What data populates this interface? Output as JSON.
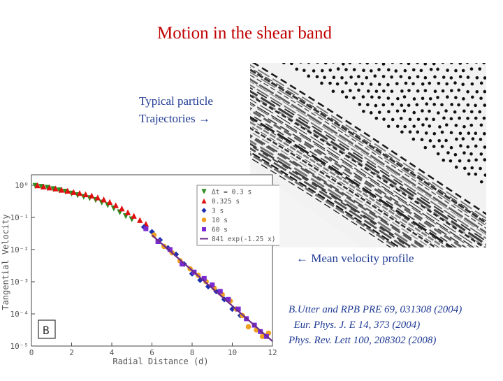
{
  "title": "Motion in the shear band",
  "trajectory_label": [
    "Typical particle",
    "Trajectories →"
  ],
  "mean_label": "← Mean velocity profile",
  "references": [
    "B.Utter and RPB PRE 69, 031308 (2004)",
    "  Eur. Phys. J. E 14, 373 (2004)",
    "Phys. Rev. Lett 100, 208302 (2008)"
  ],
  "chart_data": {
    "type": "scatter",
    "xlabel": "Radial Distance (d)",
    "ylabel": "Tangential Velocity",
    "xlim": [
      0,
      12
    ],
    "ylim_log10": [
      -5,
      0
    ],
    "x_ticks": [
      "0",
      "2",
      "4",
      "6",
      "8",
      "10",
      "12"
    ],
    "y_ticks": [
      "10⁰",
      "10⁻¹",
      "10⁻²",
      "10⁻³",
      "10⁻⁴",
      "10⁻⁵"
    ],
    "panel_label": "B",
    "legend": [
      "Δt = 0.3 s",
      "0.325 s",
      "3 s",
      "10 s",
      "60 s",
      "841 exp(-1.25 x)"
    ],
    "series": [
      {
        "name": "Δt = 0.3 s",
        "color": "#2e8b1f",
        "marker": "triangle-down",
        "x": [
          0.2,
          0.5,
          0.8,
          1.1,
          1.4,
          1.7,
          2.0,
          2.3,
          2.6,
          2.9,
          3.2,
          3.5,
          3.8,
          4.1,
          4.4,
          4.7,
          5.0
        ],
        "logy": [
          -0.02,
          -0.05,
          -0.08,
          -0.12,
          -0.16,
          -0.2,
          -0.26,
          -0.31,
          -0.36,
          -0.4,
          -0.46,
          -0.54,
          -0.62,
          -0.72,
          -0.84,
          -0.96,
          -1.06
        ]
      },
      {
        "name": "0.325 s",
        "color": "#e01010",
        "marker": "triangle-up",
        "x": [
          0.3,
          0.6,
          0.9,
          1.2,
          1.5,
          1.8,
          2.1,
          2.4,
          2.7,
          3.0,
          3.3,
          3.6,
          3.9,
          4.2,
          4.5,
          4.8,
          5.1,
          5.4,
          5.7
        ],
        "logy": [
          0.0,
          -0.04,
          -0.07,
          -0.1,
          -0.14,
          -0.17,
          -0.21,
          -0.24,
          -0.28,
          -0.32,
          -0.38,
          -0.44,
          -0.52,
          -0.62,
          -0.72,
          -0.84,
          -0.95,
          -1.08,
          -1.2
        ]
      },
      {
        "name": "3 s",
        "color": "#1a2fb0",
        "marker": "diamond",
        "x": [
          5.6,
          6.0,
          6.4,
          6.8,
          7.2,
          7.6,
          8.0,
          8.4,
          8.8,
          9.2,
          9.6,
          10.0,
          10.4
        ],
        "logy": [
          -1.3,
          -1.45,
          -1.7,
          -1.95,
          -2.15,
          -2.45,
          -2.75,
          -2.95,
          -3.15,
          -3.3,
          -3.55,
          -3.85,
          -4.05
        ]
      },
      {
        "name": "10 s",
        "color": "#f0a020",
        "marker": "circle",
        "x": [
          6.1,
          6.6,
          7.0,
          7.4,
          7.9,
          8.3,
          8.7,
          9.1,
          9.5,
          9.9,
          10.2,
          10.5,
          10.8,
          11.2,
          11.5,
          11.8
        ],
        "logy": [
          -1.55,
          -1.9,
          -2.1,
          -2.35,
          -2.6,
          -2.8,
          -3.0,
          -3.2,
          -3.4,
          -3.6,
          -3.85,
          -4.05,
          -4.4,
          -4.5,
          -4.7,
          -4.6
        ]
      },
      {
        "name": "60 s",
        "color": "#7a2ad0",
        "marker": "square",
        "x": [
          5.7,
          6.3,
          6.9,
          7.5,
          8.1,
          8.6,
          9.0,
          9.4,
          9.8,
          10.3,
          10.7,
          11.1,
          11.4,
          11.7
        ],
        "logy": [
          -1.35,
          -1.75,
          -2.0,
          -2.45,
          -2.7,
          -2.9,
          -3.1,
          -3.3,
          -3.55,
          -3.85,
          -4.15,
          -4.35,
          -4.55,
          -4.7
        ]
      },
      {
        "name": "841 exp(-1.25 x)",
        "color": "#6a2a8a",
        "marker": "line",
        "x": [
          6.0,
          12.0
        ],
        "logy": [
          -1.55,
          -4.85
        ]
      }
    ]
  }
}
